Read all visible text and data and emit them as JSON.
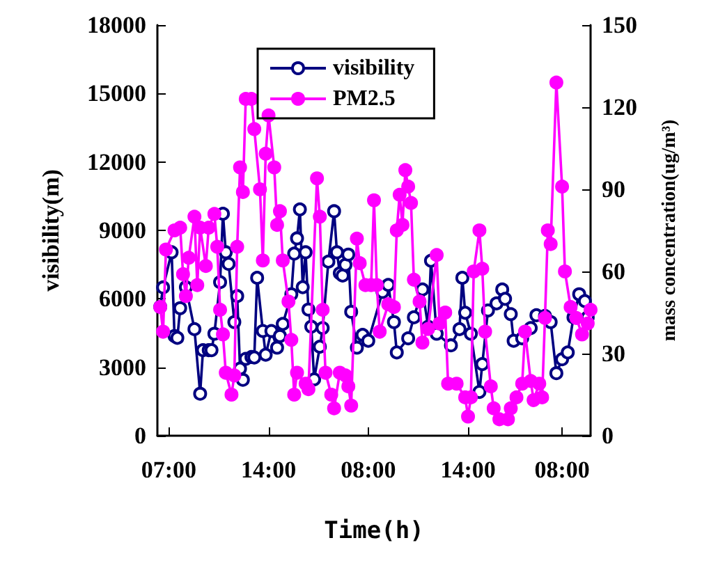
{
  "chart_data": {
    "type": "line",
    "xlabel": "Time(h)",
    "ylabel": "visibility(m)",
    "y2label": "mass concentration(ug/m³)",
    "categories": [
      null,
      null,
      null,
      null,
      "07:00",
      null,
      null,
      null,
      null,
      null,
      null,
      null,
      null,
      null,
      null,
      null,
      null,
      null,
      null,
      null,
      null,
      null,
      null,
      null,
      null,
      null,
      null,
      null,
      null,
      null,
      null,
      null,
      null,
      null,
      null,
      null,
      null,
      null,
      null,
      "14:00",
      null,
      null,
      null,
      null,
      null,
      null,
      null,
      null,
      null,
      null,
      null,
      null,
      null,
      null,
      null,
      null,
      null,
      null,
      null,
      null,
      null,
      null,
      null,
      null,
      null,
      null,
      null,
      null,
      null,
      null,
      null,
      null,
      null,
      null,
      "08:00",
      null,
      null,
      null,
      null,
      null,
      null,
      null,
      null,
      null,
      null,
      null,
      null,
      null,
      null,
      null,
      null,
      null,
      null,
      null,
      null,
      null,
      null,
      null,
      null,
      null,
      null,
      null,
      null,
      null,
      null,
      null,
      null,
      null,
      null,
      "14:00",
      null,
      null,
      null,
      null,
      null,
      null,
      null,
      null,
      null,
      null,
      null,
      null,
      null,
      null,
      null,
      null,
      null,
      null,
      null,
      null,
      null,
      null,
      null,
      null,
      null,
      null,
      null,
      null,
      null,
      null,
      null,
      null,
      "08:00",
      null,
      null,
      null,
      null,
      null,
      null,
      null,
      null,
      null,
      null
    ],
    "ylim": [
      0,
      18000
    ],
    "yticks": [
      0,
      3000,
      6000,
      9000,
      12000,
      15000,
      18000
    ],
    "y2lim": [
      0,
      150
    ],
    "y2ticks": [
      0,
      30,
      60,
      90,
      120,
      150
    ],
    "legend": "top",
    "marker": "circle",
    "line_style": "solid",
    "series": [
      {
        "name": "visibility",
        "color": "#000080",
        "values": [
          null,
          5650,
          6500,
          null,
          null,
          8040,
          4370,
          4290,
          5590,
          null,
          6510,
          null,
          null,
          4670,
          null,
          1840,
          3750,
          null,
          3750,
          3750,
          4470,
          null,
          6730,
          9730,
          8040,
          7530,
          null,
          4980,
          6120,
          2940,
          2450,
          3370,
          null,
          3450,
          3430,
          6920,
          null,
          4590,
          3550,
          null,
          4590,
          null,
          3860,
          4370,
          4900,
          null,
          null,
          6200,
          7980,
          8650,
          9920,
          6510,
          8040,
          5530,
          4780,
          2470,
          null,
          3900,
          4720,
          null,
          7630,
          null,
          9840,
          8040,
          7120,
          7020,
          7490,
          7940,
          5430,
          null,
          3860,
          null,
          4420,
          null,
          4160,
          null,
          null,
          null,
          null,
          6300,
          null,
          6610,
          null,
          4980,
          3650,
          null,
          null,
          null,
          4270,
          null,
          5190,
          null,
          null,
          6410,
          null,
          4780,
          7670,
          null,
          4470,
          null,
          null,
          null,
          null,
          3960,
          null,
          null,
          4670,
          6920,
          5390,
          null,
          4470,
          null,
          null,
          1920,
          3140,
          null,
          5490,
          null,
          null,
          5800,
          null,
          6410,
          6000,
          null,
          5330,
          4160,
          null,
          null,
          4270,
          null,
          null,
          4720,
          null,
          5280,
          null,
          null,
          5250,
          null,
          4980,
          null,
          2740,
          null,
          3350,
          null,
          3650,
          null,
          5190,
          null,
          6200,
          null,
          5900,
          5190,
          null
        ]
      },
      {
        "name": "PM2.5",
        "color": "#ff00ff",
        "axis": "y2",
        "values": [
          null,
          47,
          38,
          68,
          null,
          null,
          75,
          null,
          76,
          59,
          51,
          65,
          null,
          80,
          55,
          76,
          null,
          62,
          76,
          null,
          81,
          69,
          46,
          37,
          23,
          null,
          15,
          22,
          69,
          98,
          89,
          123,
          null,
          123,
          112,
          null,
          90,
          64,
          103,
          117,
          null,
          98,
          77,
          82,
          64,
          null,
          49,
          35,
          15,
          23,
          null,
          null,
          19,
          17,
          null,
          null,
          94,
          80,
          46,
          23,
          null,
          15,
          10,
          null,
          23,
          null,
          22,
          18,
          11,
          null,
          72,
          63,
          null,
          55,
          null,
          55,
          86,
          55,
          38,
          null,
          null,
          48,
          null,
          47,
          75,
          88,
          77,
          97,
          91,
          85,
          57,
          null,
          49,
          34,
          null,
          39,
          null,
          null,
          66,
          41,
          null,
          45,
          19,
          null,
          null,
          19,
          null,
          null,
          14,
          7,
          14,
          60,
          null,
          75,
          61,
          38,
          null,
          18,
          10,
          null,
          6,
          null,
          null,
          6,
          10,
          null,
          14,
          null,
          19,
          38,
          null,
          20,
          13,
          null,
          19,
          14,
          43,
          75,
          70,
          null,
          129,
          null,
          91,
          60,
          null,
          47,
          null,
          43,
          null,
          37,
          null,
          41,
          46
        ]
      }
    ]
  }
}
